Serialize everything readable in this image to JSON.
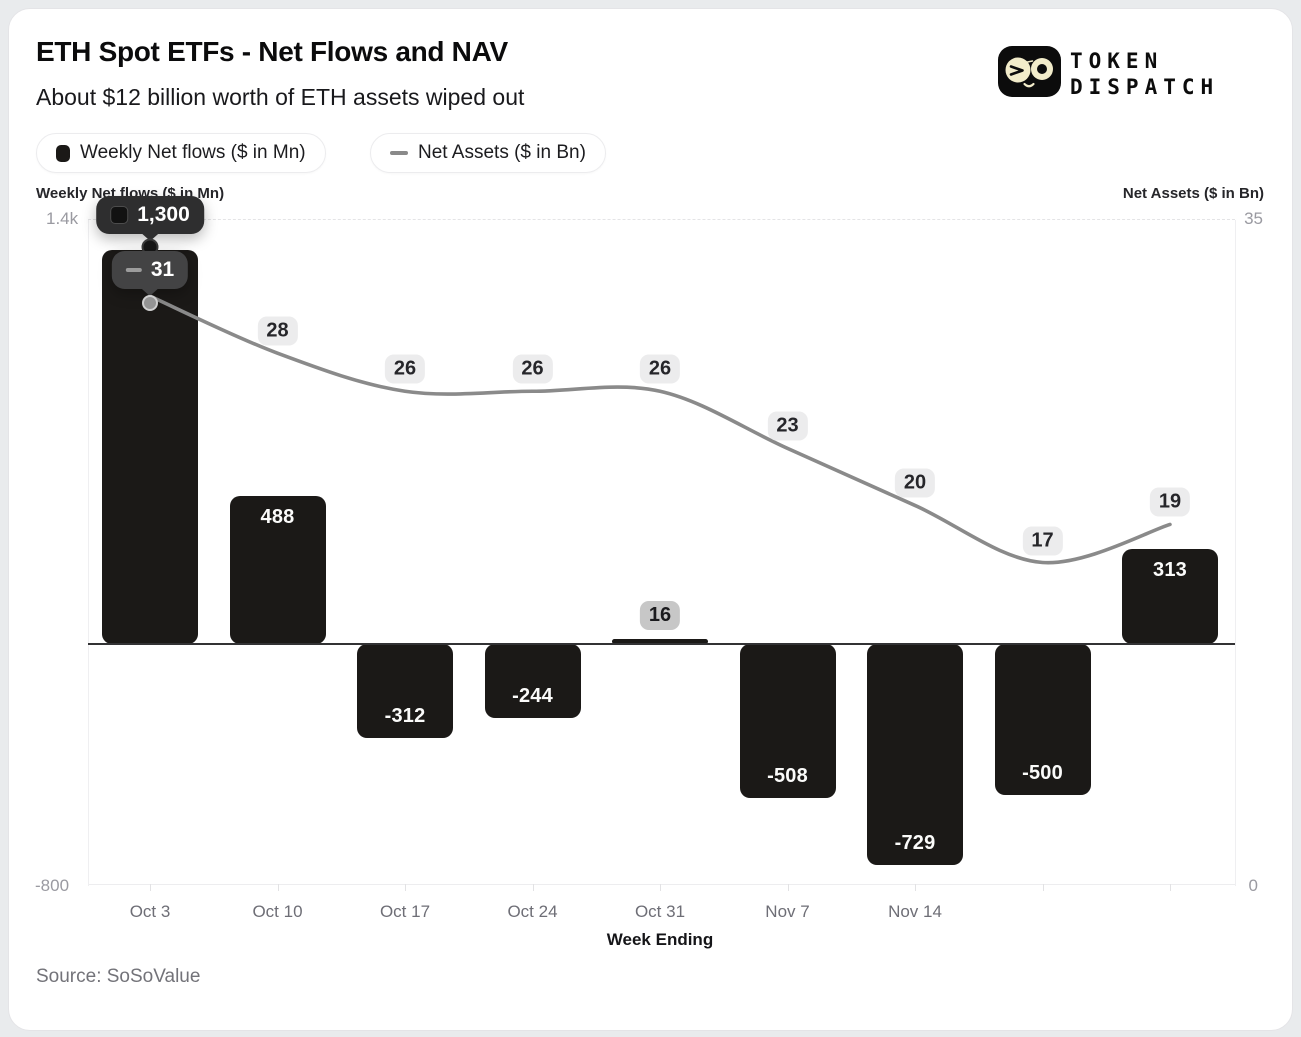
{
  "header": {
    "title": "ETH Spot ETFs - Net Flows and NAV",
    "subtitle": "About $12 billion worth of ETH assets wiped out"
  },
  "logo": {
    "word1": "TOKEN",
    "word2": "DISPATCH"
  },
  "legend": {
    "bar_label": "Weekly Net flows ($ in Mn)",
    "line_label": "Net Assets ($ in Bn)"
  },
  "axes": {
    "left_title": "Weekly Net flows ($ in Mn)",
    "left_top_tick": "1.4k",
    "left_bottom_tick": "-800",
    "right_title": "Net Assets ($ in Bn)",
    "right_top_tick": "35",
    "right_bottom_tick": "0",
    "x_title": "Week Ending"
  },
  "tooltip": {
    "bar_value": "1,300",
    "line_value": "31"
  },
  "footer": {
    "source": "Source: SoSoValue"
  },
  "colors": {
    "bar": "#1b1917",
    "line": "#8a8a8a",
    "logo_cream": "#f2ecca",
    "line_badge_bg": "#ececed",
    "bar_badge_bg": "#c7c7c7",
    "tooltip_bg": "#2e2e2f"
  },
  "chart_data": {
    "type": "bar",
    "subtype": "bar+line combo",
    "title": "ETH Spot ETFs - Net Flows and NAV",
    "xlabel": "Week Ending",
    "categories": [
      "Oct 3",
      "Oct 10",
      "Oct 17",
      "Oct 24",
      "Oct 31",
      "Nov 7",
      "Nov 14",
      "",
      ""
    ],
    "x_tick_labels": [
      "Oct 3",
      "Oct 10",
      "Oct 17",
      "Oct 24",
      "Oct 31",
      "Nov 7",
      "Nov 14"
    ],
    "series": [
      {
        "name": "Weekly Net flows ($ in Mn)",
        "type": "bar",
        "axis": "left",
        "values": [
          1300,
          488,
          -312,
          -244,
          16,
          -508,
          -729,
          -500,
          313
        ],
        "labels": [
          "1,300",
          "488",
          "-312",
          "-244",
          "16",
          "-508",
          "-729",
          "-500",
          "313"
        ]
      },
      {
        "name": "Net Assets ($ in Bn)",
        "type": "line",
        "axis": "right",
        "values": [
          31,
          28,
          26,
          26,
          26,
          23,
          20,
          17,
          19
        ],
        "labels": [
          "31",
          "28",
          "26",
          "26",
          "26",
          "23",
          "20",
          "17",
          "19"
        ]
      }
    ],
    "left_axis": {
      "title": "Weekly Net flows ($ in Mn)",
      "min": -800,
      "max": 1400
    },
    "right_axis": {
      "title": "Net Assets ($ in Bn)",
      "min": 0,
      "max": 35
    },
    "legend_position": "top-left",
    "grid": "top dashed line, bottom line, zero baseline"
  }
}
